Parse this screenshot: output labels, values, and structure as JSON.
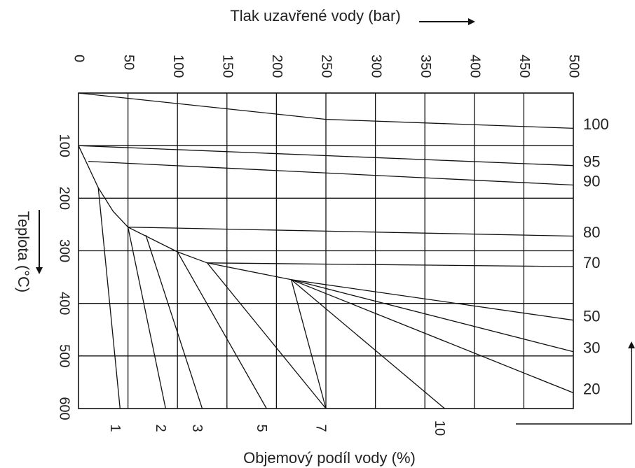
{
  "chart_data": {
    "type": "line",
    "xlabel": "Tlak uzavřené vody (bar)",
    "ylabel": "Teplota (°C)",
    "bottom_label": "Objemový podíl vody (%)",
    "xlim": [
      0,
      500
    ],
    "ylim": [
      0,
      600
    ],
    "x_ticks": [
      0,
      50,
      100,
      150,
      200,
      250,
      300,
      350,
      400,
      450,
      500
    ],
    "x_tick_labels": [
      "0",
      "50",
      "100",
      "150",
      "200",
      "250",
      "300",
      "350",
      "400",
      "450",
      "500"
    ],
    "y_ticks": [
      100,
      200,
      300,
      400,
      500,
      600
    ],
    "y_tick_labels": [
      "100",
      "200",
      "300",
      "400",
      "500",
      "600"
    ],
    "grid": true,
    "line_color": "#111111",
    "arrow_color": "#111111",
    "isochores": [
      {
        "label": "100",
        "points": [
          [
            0,
            0
          ],
          [
            250,
            50
          ],
          [
            500,
            67
          ]
        ]
      },
      {
        "label": "95",
        "points": [
          [
            0,
            100
          ],
          [
            500,
            138
          ]
        ]
      },
      {
        "label": "90",
        "points": [
          [
            10,
            130
          ],
          [
            500,
            175
          ]
        ]
      },
      {
        "label": "80",
        "points": [
          [
            50,
            255
          ],
          [
            500,
            272
          ]
        ]
      },
      {
        "label": "70",
        "points": [
          [
            130,
            323
          ],
          [
            500,
            330
          ]
        ]
      },
      {
        "label": "50",
        "points": [
          [
            215,
            355
          ],
          [
            500,
            432
          ]
        ]
      },
      {
        "label": "30",
        "points": [
          [
            215,
            355
          ],
          [
            500,
            492
          ]
        ]
      },
      {
        "label": "20",
        "points": [
          [
            215,
            355
          ],
          [
            500,
            570
          ]
        ]
      }
    ],
    "boundary_curve": [
      [
        0,
        100
      ],
      [
        10,
        140
      ],
      [
        20,
        180
      ],
      [
        35,
        225
      ],
      [
        50,
        255
      ],
      [
        100,
        302
      ],
      [
        130,
        323
      ],
      [
        215,
        355
      ]
    ],
    "composition_lines": [
      {
        "label": "1",
        "points": [
          [
            20,
            180
          ],
          [
            42,
            600
          ]
        ]
      },
      {
        "label": "2",
        "points": [
          [
            50,
            255
          ],
          [
            88,
            600
          ]
        ]
      },
      {
        "label": "3",
        "points": [
          [
            68,
            270
          ],
          [
            125,
            600
          ]
        ]
      },
      {
        "label": "",
        "points": [
          [
            100,
            302
          ],
          [
            190,
            600
          ]
        ]
      },
      {
        "label": "5",
        "points": [
          [
            130,
            323
          ],
          [
            250,
            600
          ]
        ]
      },
      {
        "label": "7",
        "points": [
          [
            215,
            355
          ],
          [
            250,
            600
          ]
        ]
      },
      {
        "label": "10",
        "points": [
          [
            215,
            355
          ],
          [
            370,
            600
          ]
        ]
      }
    ],
    "bottom_labels": [
      {
        "label": "1",
        "x": 42
      },
      {
        "label": "2",
        "x": 88
      },
      {
        "label": "3",
        "x": 125
      },
      {
        "label": "5",
        "x": 190
      },
      {
        "label": "7",
        "x": 250
      },
      {
        "label": "10",
        "x": 370
      }
    ]
  }
}
